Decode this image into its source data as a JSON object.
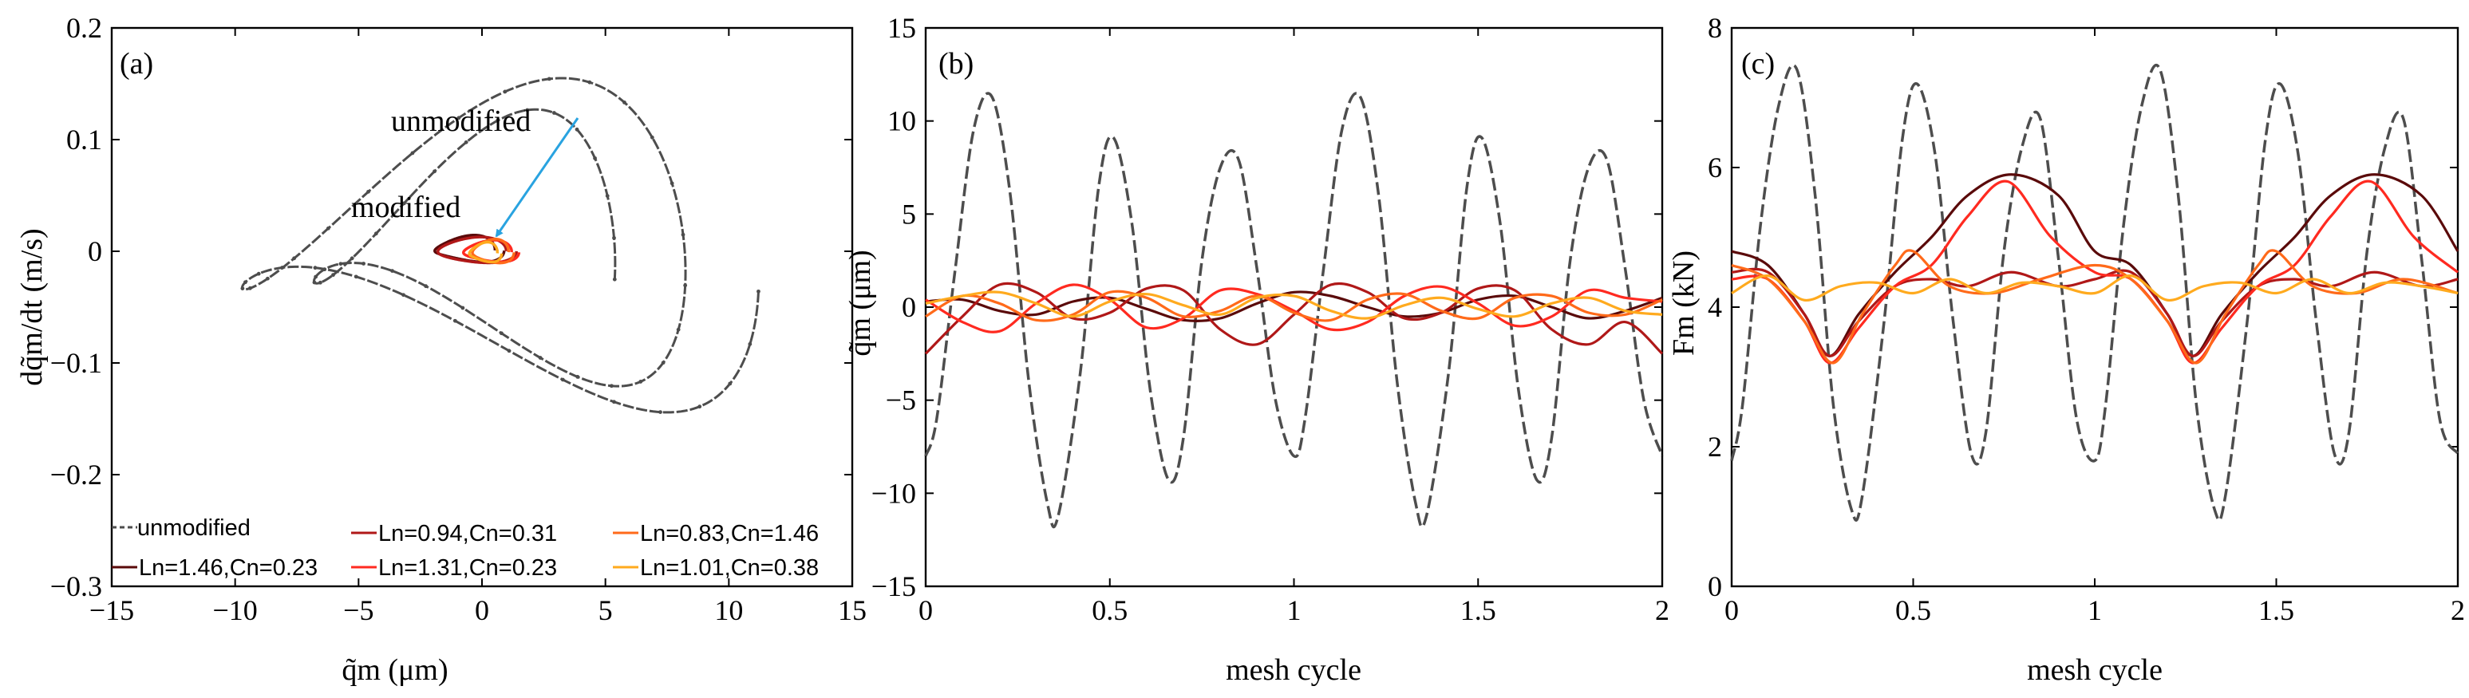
{
  "figure": {
    "colors": {
      "unmodified": "#4d4d4d",
      "s1": "#5a0a0a",
      "s2": "#b01818",
      "s3": "#ff2a20",
      "s4": "#ff6a1a",
      "s5": "#ffaa1e",
      "arrow": "#29a3e0"
    }
  },
  "chart_data": [
    {
      "id": "a",
      "type": "line",
      "panel_label": "(a)",
      "xlabel": "q̃m (μm)",
      "ylabel": "dq̃m/dt (m/s)",
      "xlim": [
        -15,
        15
      ],
      "ylim": [
        -0.3,
        0.2
      ],
      "xticks": [
        -15,
        -10,
        -5,
        0,
        5,
        10,
        15
      ],
      "yticks": [
        -0.3,
        -0.2,
        -0.1,
        0,
        0.1,
        0.2
      ],
      "xtick_labels": [
        "−15",
        "−10",
        "−5",
        "0",
        "5",
        "10",
        "15"
      ],
      "ytick_labels": [
        "−0.3",
        "−0.2",
        "−0.1",
        "0",
        "0.1",
        "0.2"
      ],
      "annotations": [
        {
          "text": "unmodified",
          "x": 0.9,
          "y": 0.09
        },
        {
          "text": "modified",
          "x": -3.9,
          "y": 0.033
        }
      ],
      "arrow": {
        "from": [
          4.3,
          0.08
        ],
        "to": [
          1.0,
          0.01
        ]
      },
      "series": [
        {
          "name": "unmodified",
          "kind": "phase_orbit",
          "color_key": "unmodified",
          "params": {
            "a": 11.2,
            "b": 0.115,
            "w": 1,
            "c": 0.075,
            "w2": 2,
            "cx": 0,
            "cy": 0,
            "turns": 2,
            "drift": -0.02
          }
        },
        {
          "name": "Ln=1.46,Cn=0.23",
          "kind": "phase_orbit",
          "color_key": "s1",
          "params": {
            "a": 1.5,
            "b": 0.012,
            "w": 1,
            "c": 0.003,
            "w2": 2,
            "cx": -0.6,
            "cy": 0.002,
            "turns": 1,
            "drift": 0
          }
        },
        {
          "name": "Ln=0.94,Cn=0.31",
          "kind": "phase_orbit",
          "color_key": "s2",
          "params": {
            "a": 1.7,
            "b": 0.012,
            "w": 1,
            "c": 0.002,
            "w2": 2,
            "cx": -0.3,
            "cy": 0.001,
            "turns": 1,
            "drift": 0
          }
        },
        {
          "name": "Ln=1.31,Cn=0.23",
          "kind": "phase_orbit",
          "color_key": "s3",
          "params": {
            "a": 1.2,
            "b": 0.01,
            "w": 1,
            "c": 0.002,
            "w2": 2,
            "cx": 0.3,
            "cy": 0.0,
            "turns": 1,
            "drift": 0
          }
        },
        {
          "name": "Ln=0.83,Cn=1.46",
          "kind": "phase_orbit",
          "color_key": "s4",
          "params": {
            "a": 0.9,
            "b": 0.011,
            "w": 1,
            "c": 0.002,
            "w2": 2,
            "cx": 0.4,
            "cy": 0.0,
            "turns": 1,
            "drift": 0
          }
        },
        {
          "name": "Ln=1.01,Cn=0.38",
          "kind": "phase_orbit",
          "color_key": "s5",
          "params": {
            "a": 0.7,
            "b": 0.009,
            "w": 1,
            "c": 0.002,
            "w2": 2,
            "cx": 0.1,
            "cy": -0.001,
            "turns": 1,
            "drift": 0
          }
        }
      ],
      "legend": {
        "placement": "bottom",
        "entries": [
          {
            "label": "unmodified",
            "color_key": "unmodified",
            "dashed": true
          },
          {
            "label": "Ln=1.46,Cn=0.23",
            "color_key": "s1",
            "dashed": false
          },
          {
            "label": "Ln=0.94,Cn=0.31",
            "color_key": "s2",
            "dashed": false
          },
          {
            "label": "Ln=1.31,Cn=0.23",
            "color_key": "s3",
            "dashed": false
          },
          {
            "label": "Ln=0.83,Cn=1.46",
            "color_key": "s4",
            "dashed": false
          },
          {
            "label": "Ln=1.01,Cn=0.38",
            "color_key": "s5",
            "dashed": false
          }
        ]
      }
    },
    {
      "id": "b",
      "type": "line",
      "panel_label": "(b)",
      "xlabel": "mesh cycle",
      "ylabel": "q̃m (μm)",
      "xlim": [
        0,
        2
      ],
      "ylim": [
        -15,
        15
      ],
      "xticks": [
        0,
        0.5,
        1,
        1.5,
        2
      ],
      "yticks": [
        -15,
        -10,
        -5,
        0,
        5,
        10,
        15
      ],
      "xtick_labels": [
        "0",
        "0.5",
        "1",
        "1.5",
        "2"
      ],
      "ytick_labels": [
        "−15",
        "−10",
        "−5",
        "0",
        "5",
        "10",
        "15"
      ],
      "series": [
        {
          "name": "unmodified",
          "dashed": true,
          "color_key": "unmodified",
          "x": [
            0,
            0.03,
            0.08,
            0.13,
            0.18,
            0.23,
            0.28,
            0.33,
            0.36,
            0.42,
            0.47,
            0.51,
            0.56,
            0.61,
            0.66,
            0.7,
            0.75,
            0.8,
            0.85,
            0.9,
            0.95,
            1.0,
            1.03,
            1.08,
            1.13,
            1.18,
            1.23,
            1.28,
            1.33,
            1.36,
            1.42,
            1.47,
            1.51,
            1.56,
            1.61,
            1.66,
            1.7,
            1.75,
            1.8,
            1.85,
            1.9,
            1.95,
            2.0
          ],
          "y": [
            -8.0,
            -6.0,
            2.0,
            9.5,
            11.3,
            6.0,
            -4.0,
            -10.5,
            -11.2,
            -3.5,
            6.5,
            9.1,
            4.5,
            -4.5,
            -9.3,
            -7.0,
            2.5,
            7.5,
            7.9,
            2.0,
            -5.0,
            -8.0,
            -6.0,
            2.0,
            9.5,
            11.3,
            6.0,
            -4.0,
            -10.5,
            -11.2,
            -3.5,
            6.5,
            9.1,
            4.5,
            -4.5,
            -9.3,
            -7.0,
            2.5,
            7.5,
            7.9,
            2.0,
            -5.0,
            -8.0
          ]
        },
        {
          "name": "Ln=1.46,Cn=0.23",
          "color_key": "s1",
          "x": [
            0,
            0.1,
            0.2,
            0.3,
            0.4,
            0.5,
            0.6,
            0.7,
            0.8,
            0.9,
            1.0,
            1.1,
            1.2,
            1.3,
            1.4,
            1.5,
            1.6,
            1.7,
            1.8,
            1.9,
            2.0
          ],
          "y": [
            0.3,
            0.4,
            -0.2,
            -0.4,
            0.3,
            0.5,
            -0.1,
            -0.7,
            -0.6,
            0.2,
            0.8,
            0.6,
            0.0,
            -0.5,
            -0.3,
            0.4,
            0.6,
            0.0,
            -0.6,
            -0.2,
            0.5
          ]
        },
        {
          "name": "Ln=0.94,Cn=0.31",
          "color_key": "s2",
          "x": [
            0,
            0.1,
            0.2,
            0.3,
            0.4,
            0.5,
            0.6,
            0.7,
            0.8,
            0.9,
            1.0,
            1.1,
            1.2,
            1.3,
            1.4,
            1.5,
            1.6,
            1.7,
            1.8,
            1.9,
            2.0
          ],
          "y": [
            -2.5,
            -0.5,
            1.2,
            0.8,
            -0.6,
            -0.3,
            1.0,
            0.9,
            -1.2,
            -2.0,
            -0.4,
            1.2,
            0.8,
            -0.6,
            -0.3,
            1.0,
            0.9,
            -1.2,
            -2.0,
            -0.8,
            -2.5
          ]
        },
        {
          "name": "Ln=1.31,Cn=0.23",
          "color_key": "s3",
          "x": [
            0,
            0.1,
            0.2,
            0.3,
            0.4,
            0.5,
            0.6,
            0.7,
            0.8,
            0.9,
            1.0,
            1.1,
            1.2,
            1.3,
            1.4,
            1.5,
            1.6,
            1.7,
            1.8,
            1.9,
            2.0
          ],
          "y": [
            0.4,
            -0.8,
            -1.3,
            0.2,
            1.2,
            0.4,
            -1.1,
            -0.6,
            0.9,
            0.7,
            -0.2,
            -1.2,
            -0.8,
            0.6,
            1.1,
            0.2,
            -1.0,
            -0.5,
            0.9,
            0.5,
            0.3
          ]
        },
        {
          "name": "Ln=0.83,Cn=1.46",
          "color_key": "s4",
          "x": [
            0,
            0.1,
            0.2,
            0.3,
            0.4,
            0.5,
            0.6,
            0.7,
            0.8,
            0.9,
            1.0,
            1.1,
            1.2,
            1.3,
            1.4,
            1.5,
            1.6,
            1.7,
            1.8,
            1.9,
            2.0
          ],
          "y": [
            -0.5,
            0.6,
            0.2,
            -0.7,
            -0.4,
            0.8,
            0.5,
            -0.5,
            -0.2,
            0.6,
            -0.3,
            -0.7,
            0.4,
            0.7,
            -0.2,
            -0.6,
            0.5,
            0.6,
            -0.3,
            -0.4,
            0.4
          ]
        },
        {
          "name": "Ln=1.01,Cn=0.38",
          "color_key": "s5",
          "x": [
            0,
            0.1,
            0.2,
            0.3,
            0.4,
            0.5,
            0.6,
            0.7,
            0.8,
            0.9,
            1.0,
            1.1,
            1.2,
            1.3,
            1.4,
            1.5,
            1.6,
            1.7,
            1.8,
            1.9,
            2.0
          ],
          "y": [
            0.2,
            0.6,
            0.8,
            0.2,
            -0.5,
            0.3,
            0.7,
            0.1,
            -0.4,
            0.5,
            0.6,
            -0.2,
            -0.6,
            0.1,
            0.5,
            -0.1,
            -0.5,
            0.2,
            0.5,
            -0.2,
            -0.4
          ]
        }
      ]
    },
    {
      "id": "c",
      "type": "line",
      "panel_label": "(c)",
      "xlabel": "mesh cycle",
      "ylabel": "Fm (kN)",
      "xlim": [
        0,
        2
      ],
      "ylim": [
        0,
        8
      ],
      "xticks": [
        0,
        0.5,
        1,
        1.5,
        2
      ],
      "yticks": [
        0,
        2,
        4,
        6,
        8
      ],
      "xtick_labels": [
        "0",
        "0.5",
        "1",
        "1.5",
        "2"
      ],
      "ytick_labels": [
        "0",
        "2",
        "4",
        "6",
        "8"
      ],
      "series": [
        {
          "name": "unmodified",
          "dashed": true,
          "color_key": "unmodified",
          "x": [
            0,
            0.03,
            0.08,
            0.13,
            0.18,
            0.23,
            0.28,
            0.33,
            0.36,
            0.42,
            0.47,
            0.51,
            0.56,
            0.61,
            0.66,
            0.7,
            0.75,
            0.8,
            0.85,
            0.9,
            0.95,
            1.0,
            1.03,
            1.08,
            1.13,
            1.18,
            1.23,
            1.28,
            1.33,
            1.36,
            1.42,
            1.47,
            1.51,
            1.56,
            1.61,
            1.66,
            1.7,
            1.75,
            1.8,
            1.85,
            1.9,
            1.95,
            2.0
          ],
          "y": [
            1.8,
            2.6,
            5.2,
            6.9,
            7.4,
            5.6,
            2.6,
            1.1,
            1.3,
            3.8,
            6.4,
            7.2,
            6.2,
            3.8,
            1.9,
            2.2,
            4.8,
            6.3,
            6.7,
            4.7,
            2.4,
            1.8,
            2.6,
            5.2,
            6.9,
            7.4,
            5.6,
            2.6,
            1.1,
            1.3,
            3.8,
            6.4,
            7.2,
            6.2,
            3.8,
            1.9,
            2.2,
            4.8,
            6.3,
            6.7,
            4.7,
            2.4,
            1.9
          ]
        },
        {
          "name": "Ln=1.46,Cn=0.23",
          "color_key": "s1",
          "x": [
            0,
            0.1,
            0.2,
            0.27,
            0.35,
            0.45,
            0.55,
            0.65,
            0.77,
            0.9,
            1.0,
            1.1,
            1.2,
            1.27,
            1.35,
            1.45,
            1.55,
            1.65,
            1.77,
            1.9,
            2.0
          ],
          "y": [
            4.8,
            4.6,
            3.9,
            3.3,
            3.9,
            4.5,
            5.0,
            5.6,
            5.9,
            5.6,
            4.8,
            4.6,
            3.9,
            3.3,
            3.9,
            4.5,
            5.0,
            5.6,
            5.9,
            5.6,
            4.8
          ]
        },
        {
          "name": "Ln=0.94,Cn=0.31",
          "color_key": "s2",
          "x": [
            0,
            0.1,
            0.2,
            0.27,
            0.35,
            0.45,
            0.55,
            0.65,
            0.77,
            0.9,
            1.0,
            1.1,
            1.2,
            1.27,
            1.35,
            1.45,
            1.55,
            1.65,
            1.77,
            1.9,
            2.0
          ],
          "y": [
            4.5,
            4.5,
            3.9,
            3.3,
            3.8,
            4.3,
            4.4,
            4.3,
            4.5,
            4.3,
            4.4,
            4.5,
            3.9,
            3.3,
            3.8,
            4.3,
            4.4,
            4.3,
            4.5,
            4.3,
            4.4
          ]
        },
        {
          "name": "Ln=1.31,Cn=0.23",
          "color_key": "s3",
          "x": [
            0,
            0.1,
            0.2,
            0.27,
            0.35,
            0.45,
            0.55,
            0.65,
            0.76,
            0.88,
            1.0,
            1.1,
            1.2,
            1.27,
            1.35,
            1.45,
            1.55,
            1.65,
            1.76,
            1.88,
            2.0
          ],
          "y": [
            4.4,
            4.4,
            3.8,
            3.2,
            3.7,
            4.3,
            4.6,
            5.3,
            5.8,
            5.0,
            4.5,
            4.4,
            3.8,
            3.2,
            3.7,
            4.3,
            4.6,
            5.3,
            5.8,
            5.0,
            4.5
          ]
        },
        {
          "name": "Ln=0.83,Cn=1.46",
          "color_key": "s4",
          "x": [
            0,
            0.1,
            0.2,
            0.28,
            0.36,
            0.45,
            0.5,
            0.6,
            0.72,
            0.85,
            1.0,
            1.1,
            1.2,
            1.28,
            1.36,
            1.45,
            1.5,
            1.6,
            1.72,
            1.85,
            2.0
          ],
          "y": [
            4.6,
            4.4,
            3.8,
            3.2,
            3.9,
            4.6,
            4.8,
            4.3,
            4.2,
            4.4,
            4.6,
            4.4,
            3.8,
            3.2,
            3.9,
            4.6,
            4.8,
            4.3,
            4.2,
            4.4,
            4.2
          ]
        },
        {
          "name": "Ln=1.01,Cn=0.38",
          "color_key": "s5",
          "x": [
            0,
            0.1,
            0.2,
            0.3,
            0.4,
            0.5,
            0.6,
            0.7,
            0.8,
            0.9,
            1.0,
            1.1,
            1.2,
            1.3,
            1.4,
            1.5,
            1.6,
            1.7,
            1.8,
            1.9,
            2.0
          ],
          "y": [
            4.2,
            4.45,
            4.1,
            4.3,
            4.35,
            4.2,
            4.4,
            4.2,
            4.35,
            4.3,
            4.2,
            4.45,
            4.1,
            4.3,
            4.35,
            4.2,
            4.4,
            4.2,
            4.35,
            4.3,
            4.2
          ]
        }
      ]
    }
  ]
}
